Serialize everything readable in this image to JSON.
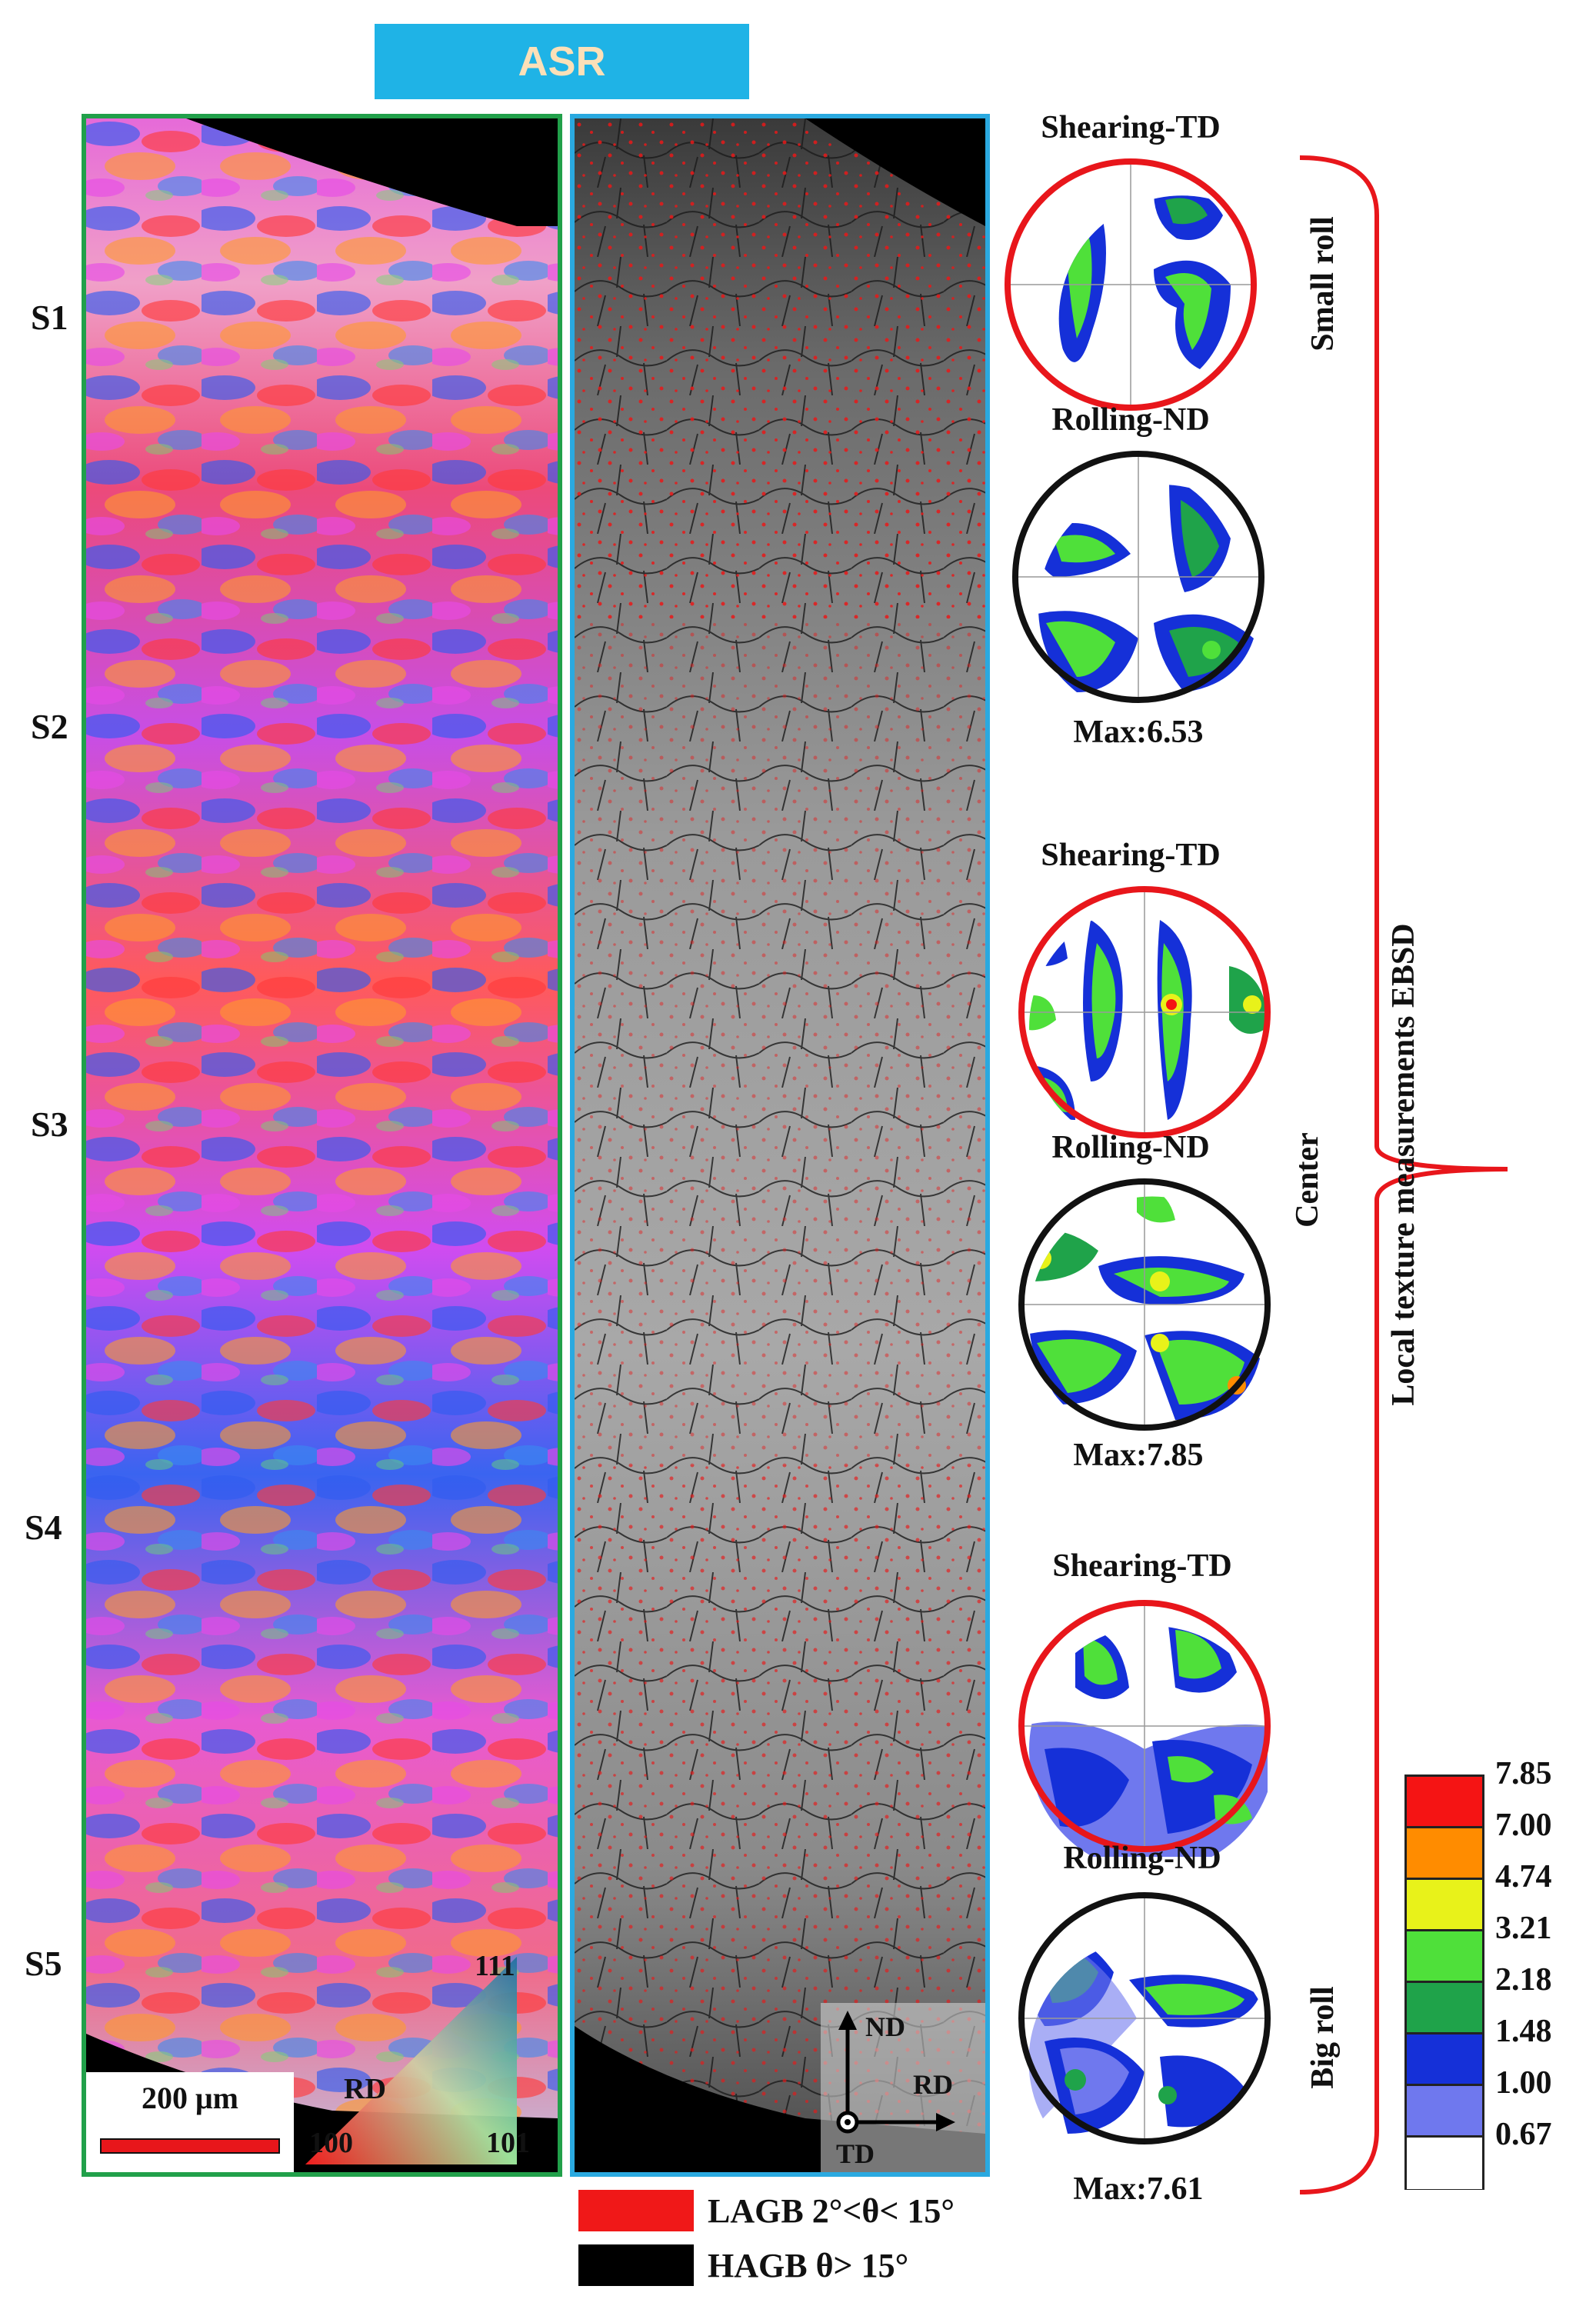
{
  "title": "ASR",
  "sections": [
    "S1",
    "S2",
    "S3",
    "S4",
    "S5"
  ],
  "ipf_map": {
    "triangle_labels": {
      "top": "111",
      "left": "100",
      "right": "101",
      "center": "RD"
    },
    "scale_bar": {
      "label": "200 μm",
      "color": "#e8161b"
    }
  },
  "boundary_map": {
    "axes": {
      "up": "ND",
      "right": "RD",
      "out": "TD"
    }
  },
  "pole_figures": [
    {
      "title": "Shearing-TD",
      "border": "#e8161b"
    },
    {
      "title": "Rolling-ND",
      "border": "#111111",
      "max": "Max:6.53"
    },
    {
      "title": "Shearing-TD",
      "border": "#e8161b"
    },
    {
      "title": "Rolling-ND",
      "border": "#111111",
      "max": "Max:7.85"
    },
    {
      "title": "Shearing-TD",
      "border": "#e8161b"
    },
    {
      "title": "Rolling-ND",
      "border": "#111111",
      "max": "Max:7.61"
    }
  ],
  "regions": {
    "top": "Small roll",
    "middle": "Center",
    "bottom": "Big roll"
  },
  "brace_label": "Local texture measurements EBSD",
  "colorbar": {
    "labels": [
      "7.85",
      "7.00",
      "4.74",
      "3.21",
      "2.18",
      "1.48",
      "1.00",
      "0.67"
    ],
    "colors": [
      "#f51414",
      "#ff8c00",
      "#e8f21a",
      "#4fe03a",
      "#1fa34a",
      "#1530d8",
      "#6f78ee",
      "#ffffff"
    ]
  },
  "legend": [
    {
      "label": "LAGB 2°<θ< 15°",
      "color": "#f01818"
    },
    {
      "label": "HAGB θ> 15°",
      "color": "#000000"
    }
  ]
}
